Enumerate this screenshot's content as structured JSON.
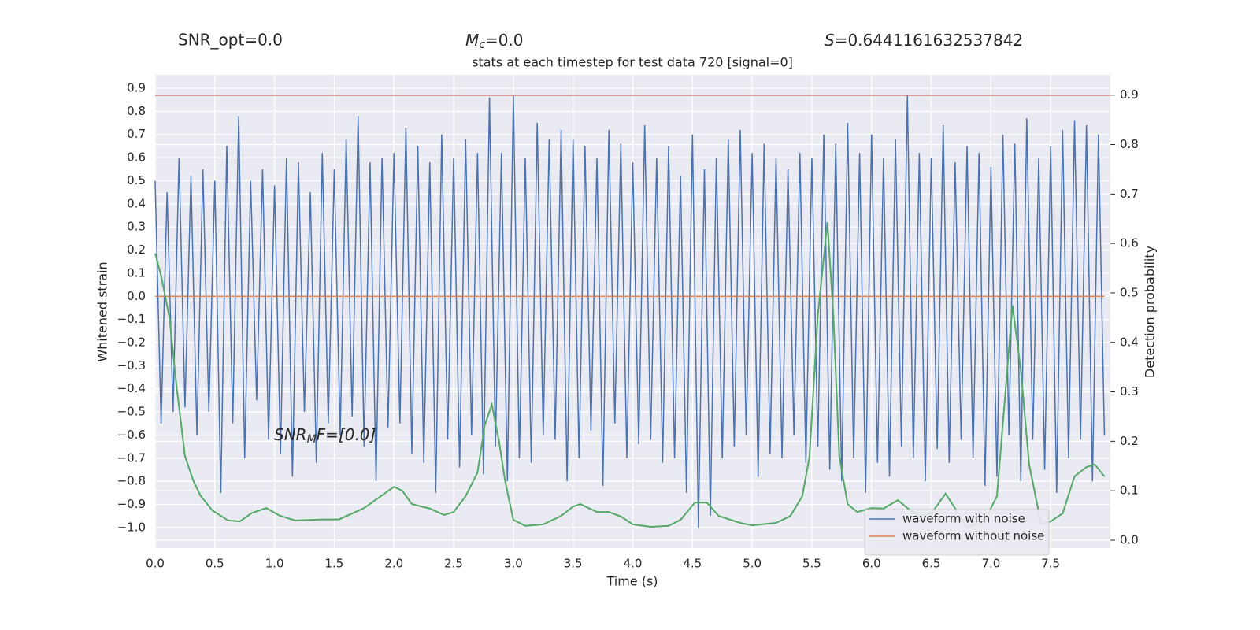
{
  "chart_data": {
    "type": "line",
    "title": "stats at each timestep for test data 720 [signal=0]",
    "annotations": [
      {
        "text": "SNR_opt=0.0"
      },
      {
        "symbol": "M",
        "subscript": "c",
        "text": "=0.0"
      },
      {
        "symbol": "S",
        "text": "=0.6441161632537842"
      },
      {
        "symbol": "SNR",
        "subscript": "M",
        "text": "F=[0.0]"
      }
    ],
    "xlabel": "Time (s)",
    "ylabel": "Whitened strain",
    "y2label": "Detection probability",
    "xlim": [
      0,
      8
    ],
    "ylim": [
      -1.089,
      0.958
    ],
    "y2lim": [
      -0.016,
      0.941
    ],
    "xticks": [
      {
        "value": 0,
        "label": "0.0"
      },
      0.5,
      {
        "value": 1,
        "label": "1.0"
      },
      1.5,
      {
        "value": 2,
        "label": "2.0"
      },
      2.5,
      {
        "value": 3,
        "label": "3.0"
      },
      3.5,
      {
        "value": 4,
        "label": "4.0"
      },
      4.5,
      {
        "value": 5,
        "label": "5.0"
      },
      5.5,
      {
        "value": 6,
        "label": "6.0"
      },
      6.5,
      {
        "value": 7,
        "label": "7.0"
      },
      7.5
    ],
    "yticks": [
      {
        "value": -1,
        "label": "−1.0"
      },
      {
        "value": -0.9,
        "label": "−0.9"
      },
      {
        "value": -0.8,
        "label": "−0.8"
      },
      {
        "value": -0.7,
        "label": "−0.7"
      },
      {
        "value": -0.6,
        "label": "−0.6"
      },
      {
        "value": -0.5,
        "label": "−0.5"
      },
      {
        "value": -0.4,
        "label": "−0.4"
      },
      {
        "value": -0.3,
        "label": "−0.3"
      },
      {
        "value": -0.2,
        "label": "−0.2"
      },
      {
        "value": -0.1,
        "label": "−0.1"
      },
      {
        "value": 0,
        "label": "0.0"
      },
      0.1,
      0.2,
      0.3,
      0.4,
      0.5,
      0.6,
      0.7,
      0.8,
      0.9
    ],
    "y2ticks": [
      {
        "value": 0,
        "label": "0.0"
      },
      0.1,
      0.2,
      0.3,
      0.4,
      0.5,
      0.6,
      0.7,
      0.8,
      0.9
    ],
    "grid": true,
    "legend": "lower right",
    "hlines": [
      {
        "value": 0.9,
        "axis": "y2",
        "color": "#c44e52"
      }
    ],
    "series": [
      {
        "name": "waveform with noise",
        "color": "#4c72b0",
        "legend": true,
        "x": [
          0,
          0.05,
          0.1,
          0.15,
          0.2,
          0.25,
          0.3,
          0.35,
          0.4,
          0.45,
          0.5,
          0.55,
          0.6,
          0.65,
          0.7,
          0.75,
          0.8,
          0.85,
          0.9,
          0.95,
          1,
          1.05,
          1.1,
          1.15,
          1.2,
          1.25,
          1.3,
          1.35,
          1.4,
          1.45,
          1.5,
          1.55,
          1.6,
          1.65,
          1.7,
          1.75,
          1.8,
          1.85,
          1.9,
          1.95,
          2,
          2.05,
          2.1,
          2.15,
          2.2,
          2.25,
          2.3,
          2.35,
          2.4,
          2.45,
          2.5,
          2.55,
          2.6,
          2.65,
          2.7,
          2.75,
          2.8,
          2.85,
          2.9,
          2.95,
          3,
          3.05,
          3.1,
          3.15,
          3.2,
          3.25,
          3.3,
          3.35,
          3.4,
          3.45,
          3.5,
          3.55,
          3.6,
          3.65,
          3.7,
          3.75,
          3.8,
          3.85,
          3.9,
          3.95,
          4,
          4.05,
          4.1,
          4.15,
          4.2,
          4.25,
          4.3,
          4.35,
          4.4,
          4.45,
          4.5,
          4.55,
          4.6,
          4.65,
          4.7,
          4.75,
          4.8,
          4.85,
          4.9,
          4.95,
          5,
          5.05,
          5.1,
          5.15,
          5.2,
          5.25,
          5.3,
          5.35,
          5.4,
          5.45,
          5.5,
          5.55,
          5.6,
          5.65,
          5.7,
          5.75,
          5.8,
          5.85,
          5.9,
          5.95,
          6,
          6.05,
          6.1,
          6.15,
          6.2,
          6.25,
          6.3,
          6.35,
          6.4,
          6.45,
          6.5,
          6.55,
          6.6,
          6.65,
          6.7,
          6.75,
          6.8,
          6.85,
          6.9,
          6.95,
          7,
          7.05,
          7.1,
          7.15,
          7.2,
          7.25,
          7.3,
          7.35,
          7.4,
          7.45,
          7.5,
          7.55,
          7.6,
          7.65,
          7.7,
          7.75,
          7.8,
          7.85,
          7.9,
          7.95
        ],
        "values": [
          0.5,
          -0.55,
          0.45,
          -0.5,
          0.6,
          -0.48,
          0.52,
          -0.6,
          0.55,
          -0.5,
          0.5,
          -0.85,
          0.65,
          -0.55,
          0.78,
          -0.7,
          0.5,
          -0.45,
          0.55,
          -0.62,
          0.48,
          -0.68,
          0.6,
          -0.78,
          0.58,
          -0.5,
          0.45,
          -0.72,
          0.62,
          -0.55,
          0.55,
          -0.6,
          0.68,
          -0.52,
          0.78,
          -0.65,
          0.58,
          -0.8,
          0.6,
          -0.57,
          0.62,
          -0.55,
          0.73,
          -0.68,
          0.65,
          -0.72,
          0.58,
          -0.85,
          0.7,
          -0.62,
          0.6,
          -0.74,
          0.68,
          -0.6,
          0.62,
          -0.77,
          0.86,
          -0.65,
          0.62,
          -0.8,
          0.87,
          -0.7,
          0.6,
          -0.72,
          0.75,
          -0.6,
          0.68,
          -0.62,
          0.72,
          -0.8,
          0.68,
          -0.7,
          0.65,
          -0.58,
          0.6,
          -0.82,
          0.72,
          -0.55,
          0.66,
          -0.7,
          0.58,
          -0.64,
          0.74,
          -0.62,
          0.6,
          -0.72,
          0.65,
          -0.7,
          0.52,
          -0.85,
          0.7,
          -1.0,
          0.55,
          -0.95,
          0.6,
          -0.7,
          0.68,
          -0.65,
          0.72,
          -0.6,
          0.62,
          -0.78,
          0.66,
          -0.68,
          0.6,
          -0.7,
          0.55,
          -0.6,
          0.62,
          -0.72,
          0.6,
          -0.65,
          0.7,
          -0.75,
          0.66,
          -0.8,
          0.75,
          -0.7,
          0.62,
          -0.85,
          0.7,
          -0.72,
          0.6,
          -0.78,
          0.68,
          -0.65,
          0.87,
          -0.7,
          0.62,
          -0.8,
          0.6,
          -0.66,
          0.74,
          -0.72,
          0.58,
          -0.62,
          0.65,
          -0.7,
          0.62,
          -0.82,
          0.56,
          -0.78,
          0.7,
          -0.6,
          0.66,
          -0.8,
          0.77,
          -0.62,
          0.6,
          -0.75,
          0.65,
          -0.85,
          0.72,
          -0.7,
          0.76,
          -0.62,
          0.74,
          -0.8,
          0.7,
          -0.6
        ]
      },
      {
        "name": "waveform without noise",
        "color": "#dd8452",
        "legend": true,
        "x": [
          0,
          7.95
        ],
        "values": [
          0,
          0
        ]
      },
      {
        "name": "Detection probability",
        "color": "#55a868",
        "axis": "y2",
        "legend": false,
        "x": [
          0,
          0.05,
          0.12,
          0.18,
          0.25,
          0.32,
          0.38,
          0.48,
          0.61,
          0.71,
          0.81,
          0.93,
          1.04,
          1.17,
          1.41,
          1.54,
          1.75,
          2.0,
          2.07,
          2.15,
          2.3,
          2.42,
          2.5,
          2.6,
          2.7,
          2.76,
          2.82,
          2.88,
          2.93,
          3.0,
          3.1,
          3.25,
          3.4,
          3.5,
          3.56,
          3.7,
          3.8,
          3.9,
          4.0,
          4.15,
          4.3,
          4.4,
          4.52,
          4.62,
          4.72,
          4.9,
          5.0,
          5.2,
          5.32,
          5.42,
          5.48,
          5.55,
          5.63,
          5.68,
          5.73,
          5.8,
          5.88,
          6.0,
          6.1,
          6.22,
          6.3,
          6.4,
          6.5,
          6.62,
          6.72,
          6.8,
          6.95,
          7.05,
          7.12,
          7.18,
          7.25,
          7.32,
          7.42,
          7.5,
          7.6,
          7.7,
          7.8,
          7.87,
          7.95
        ],
        "values": [
          0.58,
          0.535,
          0.45,
          0.31,
          0.17,
          0.12,
          0.09,
          0.06,
          0.04,
          0.038,
          0.055,
          0.065,
          0.05,
          0.04,
          0.042,
          0.042,
          0.065,
          0.108,
          0.1,
          0.073,
          0.064,
          0.051,
          0.057,
          0.089,
          0.137,
          0.232,
          0.274,
          0.2,
          0.121,
          0.041,
          0.029,
          0.032,
          0.049,
          0.068,
          0.073,
          0.057,
          0.057,
          0.048,
          0.032,
          0.027,
          0.029,
          0.041,
          0.076,
          0.076,
          0.049,
          0.035,
          0.03,
          0.035,
          0.049,
          0.089,
          0.169,
          0.455,
          0.643,
          0.455,
          0.169,
          0.073,
          0.057,
          0.065,
          0.064,
          0.081,
          0.065,
          0.048,
          0.054,
          0.094,
          0.057,
          0.025,
          0.041,
          0.089,
          0.296,
          0.475,
          0.344,
          0.153,
          0.033,
          0.038,
          0.054,
          0.129,
          0.148,
          0.153,
          0.129
        ]
      }
    ]
  }
}
